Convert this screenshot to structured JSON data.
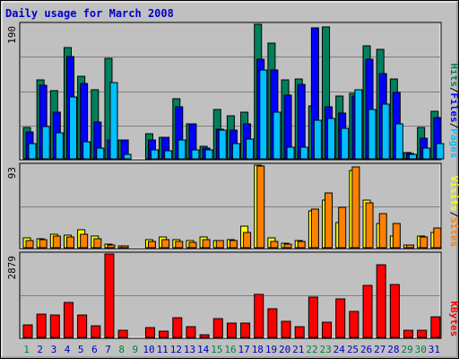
{
  "chart_data": {
    "type": "bar",
    "title": "Daily usage for March 2008",
    "days": [
      "1",
      "2",
      "3",
      "4",
      "5",
      "6",
      "7",
      "8",
      "9",
      "10",
      "11",
      "12",
      "13",
      "14",
      "15",
      "16",
      "17",
      "18",
      "19",
      "20",
      "21",
      "22",
      "23",
      "24",
      "25",
      "26",
      "27",
      "28",
      "29",
      "30",
      "31"
    ],
    "weekend_days": [
      1,
      8,
      9,
      15,
      16,
      22,
      23,
      29,
      30
    ],
    "colors": {
      "hits": "#00805c",
      "files": "#0000ff",
      "pages": "#00c0ff",
      "visits": "#ffff00",
      "sites": "#ff8000",
      "kbytes": "#ff0000",
      "title": "#0000cc",
      "day_weekday": "#0000c0",
      "day_weekend": "#008040",
      "panel": "#c0c0c0"
    },
    "panels": [
      {
        "name": "hits_files_pages",
        "ymax_label": "190",
        "ymax": 190,
        "legend": [
          "Pages",
          "/",
          "Files",
          "/",
          "Hits"
        ],
        "series": [
          {
            "key": "hits",
            "values": [
              44,
              112,
              96,
              157,
              116,
              97,
              142,
              26,
              0,
              36,
              31,
              85,
              49,
              18,
              70,
              61,
              66,
              190,
              164,
              112,
              113,
              75,
              186,
              89,
              92,
              159,
              155,
              113,
              9,
              44,
              67
            ]
          },
          {
            "key": "files",
            "values": [
              38,
              104,
              66,
              144,
              106,
              52,
              26,
              26,
              0,
              27,
              30,
              74,
              49,
              15,
              42,
              41,
              50,
              141,
              125,
              90,
              105,
              185,
              74,
              65,
              89,
              141,
              120,
              94,
              7,
              29,
              58
            ]
          },
          {
            "key": "pages",
            "values": [
              22,
              45,
              37,
              88,
              24,
              15,
              108,
              6,
              0,
              13,
              12,
              27,
              13,
              13,
              40,
              21,
              28,
              125,
              66,
              17,
              17,
              54,
              57,
              43,
              98,
              70,
              77,
              50,
              6,
              15,
              22
            ]
          }
        ]
      },
      {
        "name": "visits_sites",
        "ymax_label": "93",
        "ymax": 93,
        "legend": [
          "Sites",
          "/",
          "Visits"
        ],
        "series": [
          {
            "key": "visits",
            "values": [
              11,
              10,
              15,
              14,
              20,
              13,
              4,
              2,
              0,
              9,
              12,
              9,
              8,
              12,
              8,
              9,
              24,
              93,
              11,
              5,
              8,
              41,
              54,
              28,
              87,
              54,
              27,
              13,
              3,
              13,
              17
            ]
          },
          {
            "key": "sites",
            "values": [
              8,
              9,
              13,
              12,
              15,
              10,
              3,
              2,
              0,
              7,
              9,
              7,
              6,
              9,
              8,
              8,
              17,
              92,
              7,
              4,
              7,
              43,
              62,
              45,
              91,
              51,
              38,
              27,
              3,
              12,
              22
            ]
          }
        ]
      },
      {
        "name": "kbytes",
        "ymax_label": "2879",
        "ymax": 2879,
        "legend": [
          "KBytes"
        ],
        "series": [
          {
            "key": "kbytes",
            "values": [
              426,
              815,
              760,
              1195,
              761,
              408,
              2879,
              261,
              0,
              337,
              207,
              681,
              366,
              90,
              664,
              507,
              492,
              1475,
              987,
              557,
              366,
              1387,
              523,
              1319,
              896,
              1808,
              2506,
              1841,
              255,
              256,
              711
            ]
          }
        ]
      }
    ]
  }
}
